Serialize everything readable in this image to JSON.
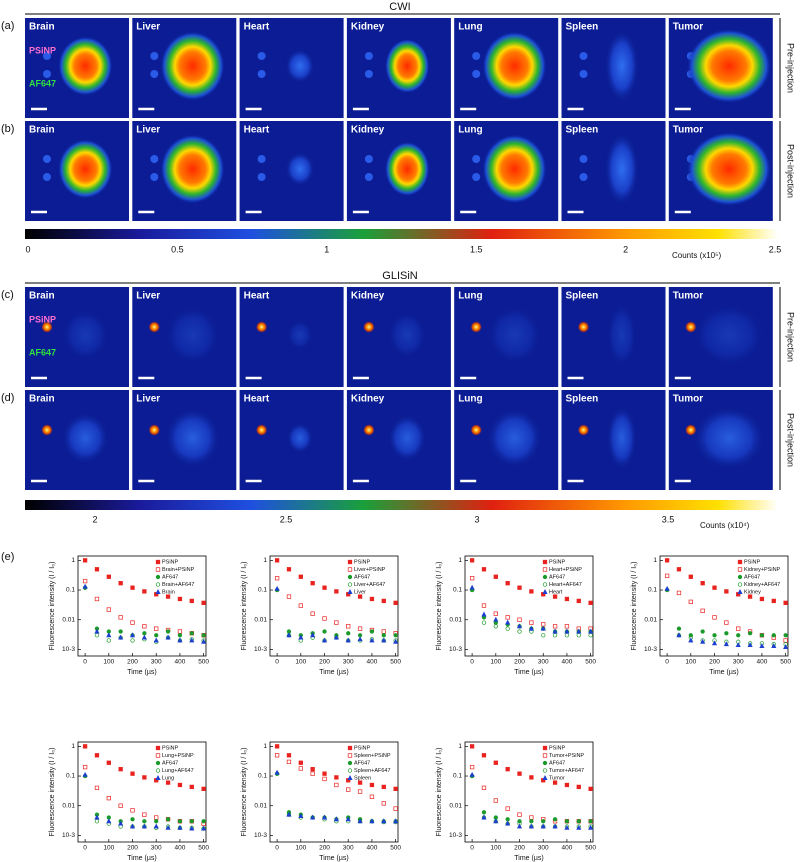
{
  "figure": {
    "organs": [
      "Brain",
      "Liver",
      "Heart",
      "Kidney",
      "Lung",
      "Spleen",
      "Tumor"
    ],
    "cwi": {
      "title": "CWI",
      "rows": [
        {
          "label": "(a)",
          "side": "Pre-injection"
        },
        {
          "label": "(b)",
          "side": "Post-injection"
        }
      ],
      "colorbar": {
        "ticks": [
          0,
          0.5,
          1,
          1.5,
          2,
          2.5
        ],
        "unit": "Counts (x10⁵)"
      }
    },
    "glisin": {
      "title": "GLISiN",
      "rows": [
        {
          "label": "(c)",
          "side": "Pre-injection"
        },
        {
          "label": "(d)",
          "side": "Post-injection"
        }
      ],
      "colorbar": {
        "ticks": [
          2,
          2.5,
          3,
          3.5
        ],
        "unit": "Counts (x10⁴)"
      }
    },
    "annotations": [
      "PSiNP",
      "AF647"
    ],
    "panel_e_label": "(e)"
  },
  "chart_data": [
    {
      "type": "scatter",
      "xlabel": "Time (µs)",
      "ylabel": "Fluorescence intensity (I / I₀)",
      "log_y": true,
      "legend": "upper right",
      "x": [
        0,
        50,
        100,
        150,
        200,
        250,
        300,
        350,
        400,
        450,
        500
      ],
      "xlim": [
        -30,
        510
      ],
      "xticks": [
        0,
        100,
        200,
        300,
        400,
        500
      ],
      "ylim": [
        0.0006,
        1.4
      ],
      "yticks": [
        {
          "value": 0.001,
          "label": "10-3"
        },
        0.01,
        0.1,
        1
      ],
      "series": [
        {
          "name": "PSiNP",
          "color": "#e8231f",
          "marker": "square",
          "filled": true,
          "values": [
            1,
            0.5,
            0.28,
            0.17,
            0.12,
            0.09,
            0.072,
            0.06,
            0.05,
            0.043,
            0.037
          ]
        },
        {
          "name": "Brain+PSiNP",
          "color": "#e8231f",
          "marker": "square",
          "filled": false,
          "values": [
            0.2,
            0.05,
            0.022,
            0.012,
            0.008,
            0.006,
            0.005,
            0.0045,
            0.004,
            0.0035,
            0.003
          ]
        },
        {
          "name": "AF647",
          "color": "#1a9a2a",
          "marker": "circle",
          "filled": true,
          "values": [
            0.12,
            0.005,
            0.004,
            0.004,
            0.003,
            0.0035,
            0.003,
            0.004,
            0.003,
            0.0035,
            0.003
          ]
        },
        {
          "name": "Brain+AF647",
          "color": "#1a9a2a",
          "marker": "circle",
          "filled": false,
          "values": [
            0.12,
            0.003,
            0.002,
            0.0025,
            0.002,
            0.0022,
            0.0018,
            0.0025,
            0.002,
            0.0022,
            0.002
          ]
        },
        {
          "name": "Brain",
          "color": "#1f3fd0",
          "marker": "triangle",
          "filled": true,
          "values": [
            0.13,
            0.004,
            0.003,
            0.0025,
            0.003,
            0.0025,
            0.002,
            0.0025,
            0.002,
            0.002,
            0.0018
          ]
        }
      ]
    },
    {
      "type": "scatter",
      "xlabel": "Time (µs)",
      "ylabel": "Fluorescence intensity (I / I₀)",
      "log_y": true,
      "legend": "upper right",
      "x": [
        0,
        50,
        100,
        150,
        200,
        250,
        300,
        350,
        400,
        450,
        500
      ],
      "xlim": [
        -30,
        510
      ],
      "xticks": [
        0,
        100,
        200,
        300,
        400,
        500
      ],
      "ylim": [
        0.0006,
        1.4
      ],
      "yticks": [
        {
          "value": 0.001,
          "label": "10-3"
        },
        0.01,
        0.1,
        1
      ],
      "series": [
        {
          "name": "PSiNP",
          "color": "#e8231f",
          "marker": "square",
          "filled": true,
          "values": [
            1,
            0.5,
            0.28,
            0.17,
            0.12,
            0.09,
            0.072,
            0.06,
            0.05,
            0.043,
            0.037
          ]
        },
        {
          "name": "Liver+PSiNP",
          "color": "#e8231f",
          "marker": "square",
          "filled": false,
          "values": [
            0.25,
            0.06,
            0.03,
            0.016,
            0.011,
            0.008,
            0.006,
            0.005,
            0.0045,
            0.004,
            0.0035
          ]
        },
        {
          "name": "AF647",
          "color": "#1a9a2a",
          "marker": "circle",
          "filled": true,
          "values": [
            0.1,
            0.004,
            0.003,
            0.0035,
            0.004,
            0.003,
            0.0035,
            0.003,
            0.004,
            0.003,
            0.003
          ]
        },
        {
          "name": "Liver+AF647",
          "color": "#1a9a2a",
          "marker": "circle",
          "filled": false,
          "values": [
            0.1,
            0.003,
            0.002,
            0.0025,
            0.002,
            0.0025,
            0.002,
            0.002,
            0.0022,
            0.002,
            0.002
          ]
        },
        {
          "name": "Liver",
          "color": "#1f3fd0",
          "marker": "triangle",
          "filled": true,
          "values": [
            0.11,
            0.003,
            0.0025,
            0.003,
            0.002,
            0.0025,
            0.002,
            0.0022,
            0.002,
            0.002,
            0.0018
          ]
        }
      ]
    },
    {
      "type": "scatter",
      "xlabel": "Time (µs)",
      "ylabel": "Fluorescence intensity (I / I₀)",
      "log_y": true,
      "legend": "upper right",
      "x": [
        0,
        50,
        100,
        150,
        200,
        250,
        300,
        350,
        400,
        450,
        500
      ],
      "xlim": [
        -30,
        510
      ],
      "xticks": [
        0,
        100,
        200,
        300,
        400,
        500
      ],
      "ylim": [
        0.0006,
        1.4
      ],
      "yticks": [
        {
          "value": 0.001,
          "label": "10-3"
        },
        0.01,
        0.1,
        1
      ],
      "series": [
        {
          "name": "PSiNP",
          "color": "#e8231f",
          "marker": "square",
          "filled": true,
          "values": [
            1,
            0.5,
            0.28,
            0.17,
            0.12,
            0.09,
            0.072,
            0.06,
            0.05,
            0.043,
            0.037
          ]
        },
        {
          "name": "Heart+PSiNP",
          "color": "#e8231f",
          "marker": "square",
          "filled": false,
          "values": [
            0.25,
            0.03,
            0.016,
            0.012,
            0.01,
            0.008,
            0.007,
            0.006,
            0.006,
            0.005,
            0.005
          ]
        },
        {
          "name": "AF647",
          "color": "#1a9a2a",
          "marker": "circle",
          "filled": true,
          "values": [
            0.1,
            0.012,
            0.008,
            0.007,
            0.006,
            0.005,
            0.005,
            0.004,
            0.004,
            0.004,
            0.004
          ]
        },
        {
          "name": "Heart+AF647",
          "color": "#1a9a2a",
          "marker": "circle",
          "filled": false,
          "values": [
            0.1,
            0.008,
            0.006,
            0.005,
            0.004,
            0.004,
            0.003,
            0.003,
            0.003,
            0.003,
            0.003
          ]
        },
        {
          "name": "Heart",
          "color": "#1f3fd0",
          "marker": "triangle",
          "filled": true,
          "values": [
            0.12,
            0.015,
            0.01,
            0.008,
            0.006,
            0.005,
            0.005,
            0.004,
            0.004,
            0.004,
            0.004
          ]
        }
      ]
    },
    {
      "type": "scatter",
      "xlabel": "Time (µs)",
      "ylabel": "Fluorescence intensity (I / I₀)",
      "log_y": true,
      "legend": "upper right",
      "x": [
        0,
        50,
        100,
        150,
        200,
        250,
        300,
        350,
        400,
        450,
        500
      ],
      "xlim": [
        -30,
        510
      ],
      "xticks": [
        0,
        100,
        200,
        300,
        400,
        500
      ],
      "ylim": [
        0.0006,
        1.4
      ],
      "yticks": [
        {
          "value": 0.001,
          "label": "10-3"
        },
        0.01,
        0.1,
        1
      ],
      "series": [
        {
          "name": "PSiNP",
          "color": "#e8231f",
          "marker": "square",
          "filled": true,
          "values": [
            1,
            0.5,
            0.28,
            0.17,
            0.12,
            0.09,
            0.072,
            0.06,
            0.05,
            0.043,
            0.037
          ]
        },
        {
          "name": "Kidney+PSiNP",
          "color": "#e8231f",
          "marker": "square",
          "filled": false,
          "values": [
            0.3,
            0.08,
            0.04,
            0.02,
            0.012,
            0.008,
            0.005,
            0.004,
            0.003,
            0.0025,
            0.002
          ]
        },
        {
          "name": "AF647",
          "color": "#1a9a2a",
          "marker": "circle",
          "filled": true,
          "values": [
            0.1,
            0.005,
            0.003,
            0.004,
            0.003,
            0.0035,
            0.003,
            0.0035,
            0.003,
            0.003,
            0.003
          ]
        },
        {
          "name": "Kidney+AF647",
          "color": "#1a9a2a",
          "marker": "circle",
          "filled": false,
          "values": [
            0.1,
            0.003,
            0.0025,
            0.002,
            0.002,
            0.0018,
            0.0018,
            0.0016,
            0.0016,
            0.0015,
            0.0015
          ]
        },
        {
          "name": "Kidney",
          "color": "#1f3fd0",
          "marker": "triangle",
          "filled": true,
          "values": [
            0.11,
            0.003,
            0.002,
            0.0018,
            0.0016,
            0.0015,
            0.0014,
            0.0014,
            0.0013,
            0.0013,
            0.0012
          ]
        }
      ]
    },
    {
      "type": "scatter",
      "xlabel": "Time (µs)",
      "ylabel": "Fluorescence intensity (I / I₀)",
      "log_y": true,
      "legend": "upper right",
      "x": [
        0,
        50,
        100,
        150,
        200,
        250,
        300,
        350,
        400,
        450,
        500
      ],
      "xlim": [
        -30,
        510
      ],
      "xticks": [
        0,
        100,
        200,
        300,
        400,
        500
      ],
      "ylim": [
        0.0006,
        1.4
      ],
      "yticks": [
        {
          "value": 0.001,
          "label": "10-3"
        },
        0.01,
        0.1,
        1
      ],
      "series": [
        {
          "name": "PSiNP",
          "color": "#e8231f",
          "marker": "square",
          "filled": true,
          "values": [
            1,
            0.5,
            0.28,
            0.17,
            0.12,
            0.09,
            0.072,
            0.06,
            0.05,
            0.043,
            0.037
          ]
        },
        {
          "name": "Lung+PSiNP",
          "color": "#e8231f",
          "marker": "square",
          "filled": false,
          "values": [
            0.2,
            0.04,
            0.018,
            0.01,
            0.007,
            0.005,
            0.004,
            0.0035,
            0.003,
            0.003,
            0.0025
          ]
        },
        {
          "name": "AF647",
          "color": "#1a9a2a",
          "marker": "circle",
          "filled": true,
          "values": [
            0.1,
            0.005,
            0.004,
            0.003,
            0.0035,
            0.003,
            0.003,
            0.0035,
            0.003,
            0.003,
            0.003
          ]
        },
        {
          "name": "Lung+AF647",
          "color": "#1a9a2a",
          "marker": "circle",
          "filled": false,
          "values": [
            0.1,
            0.003,
            0.0025,
            0.002,
            0.002,
            0.002,
            0.0018,
            0.002,
            0.0018,
            0.0018,
            0.0017
          ]
        },
        {
          "name": "Lung",
          "color": "#1f3fd0",
          "marker": "triangle",
          "filled": true,
          "values": [
            0.11,
            0.004,
            0.003,
            0.0025,
            0.002,
            0.002,
            0.002,
            0.0018,
            0.0018,
            0.0017,
            0.0017
          ]
        }
      ]
    },
    {
      "type": "scatter",
      "xlabel": "Time (µs)",
      "ylabel": "Fluorescence intensity (I / I₀)",
      "log_y": true,
      "legend": "upper right",
      "x": [
        0,
        50,
        100,
        150,
        200,
        250,
        300,
        350,
        400,
        450,
        500
      ],
      "xlim": [
        -30,
        510
      ],
      "xticks": [
        0,
        100,
        200,
        300,
        400,
        500
      ],
      "ylim": [
        0.0006,
        1.4
      ],
      "yticks": [
        {
          "value": 0.001,
          "label": "10-3"
        },
        0.01,
        0.1,
        1
      ],
      "series": [
        {
          "name": "PSiNP",
          "color": "#e8231f",
          "marker": "square",
          "filled": true,
          "values": [
            1,
            0.5,
            0.28,
            0.17,
            0.12,
            0.09,
            0.072,
            0.06,
            0.05,
            0.043,
            0.037
          ]
        },
        {
          "name": "Spleen+PSiNP",
          "color": "#e8231f",
          "marker": "square",
          "filled": false,
          "values": [
            0.5,
            0.3,
            0.18,
            0.12,
            0.08,
            0.05,
            0.035,
            0.03,
            0.02,
            0.012,
            0.008
          ]
        },
        {
          "name": "AF647",
          "color": "#1a9a2a",
          "marker": "circle",
          "filled": true,
          "values": [
            0.12,
            0.006,
            0.005,
            0.004,
            0.004,
            0.0035,
            0.004,
            0.0035,
            0.003,
            0.003,
            0.003
          ]
        },
        {
          "name": "Spleen+AF647",
          "color": "#1a9a2a",
          "marker": "circle",
          "filled": false,
          "values": [
            0.12,
            0.005,
            0.004,
            0.004,
            0.0035,
            0.003,
            0.003,
            0.003,
            0.003,
            0.0028,
            0.0028
          ]
        },
        {
          "name": "Spleen",
          "color": "#1f3fd0",
          "marker": "triangle",
          "filled": true,
          "values": [
            0.13,
            0.005,
            0.0045,
            0.004,
            0.004,
            0.0035,
            0.0035,
            0.003,
            0.003,
            0.003,
            0.003
          ]
        }
      ]
    },
    {
      "type": "scatter",
      "xlabel": "Time (µs)",
      "ylabel": "Fluorescence intensity (I / I₀)",
      "log_y": true,
      "legend": "upper right",
      "x": [
        0,
        50,
        100,
        150,
        200,
        250,
        300,
        350,
        400,
        450,
        500
      ],
      "xlim": [
        -30,
        510
      ],
      "xticks": [
        0,
        100,
        200,
        300,
        400,
        500
      ],
      "ylim": [
        0.0006,
        1.4
      ],
      "yticks": [
        {
          "value": 0.001,
          "label": "10-3"
        },
        0.01,
        0.1,
        1
      ],
      "series": [
        {
          "name": "PSiNP",
          "color": "#e8231f",
          "marker": "square",
          "filled": true,
          "values": [
            1,
            0.5,
            0.28,
            0.17,
            0.12,
            0.09,
            0.072,
            0.06,
            0.05,
            0.043,
            0.037
          ]
        },
        {
          "name": "Tumor+PSiNP",
          "color": "#e8231f",
          "marker": "square",
          "filled": false,
          "values": [
            0.2,
            0.04,
            0.015,
            0.008,
            0.005,
            0.004,
            0.0035,
            0.003,
            0.003,
            0.003,
            0.003
          ]
        },
        {
          "name": "AF647",
          "color": "#1a9a2a",
          "marker": "circle",
          "filled": true,
          "values": [
            0.1,
            0.006,
            0.004,
            0.0035,
            0.003,
            0.003,
            0.003,
            0.0035,
            0.003,
            0.003,
            0.003
          ]
        },
        {
          "name": "Tumor+AF647",
          "color": "#1a9a2a",
          "marker": "circle",
          "filled": false,
          "values": [
            0.1,
            0.004,
            0.003,
            0.0025,
            0.0025,
            0.002,
            0.002,
            0.002,
            0.002,
            0.002,
            0.002
          ]
        },
        {
          "name": "Tumor",
          "color": "#1f3fd0",
          "marker": "triangle",
          "filled": true,
          "values": [
            0.11,
            0.004,
            0.003,
            0.0025,
            0.002,
            0.002,
            0.002,
            0.002,
            0.0018,
            0.0018,
            0.0018
          ]
        }
      ]
    }
  ]
}
